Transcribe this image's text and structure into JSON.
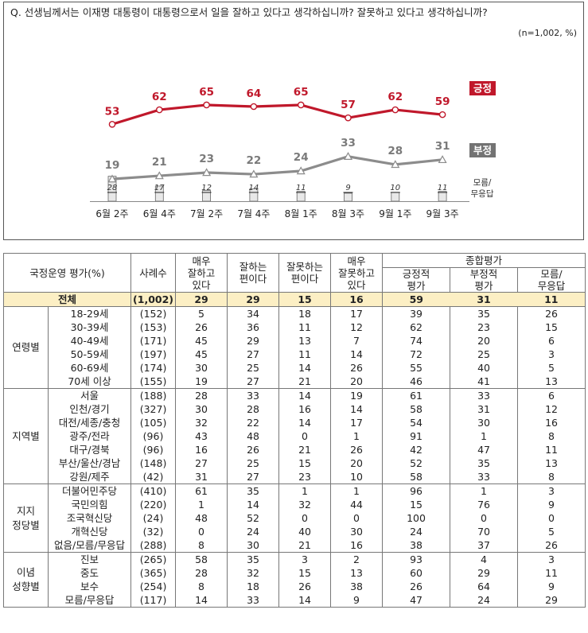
{
  "chart_data": {
    "type": "line",
    "question": "Q. 선생님께서는 이재명 대통령이 대통령으로서 일을 잘하고 있다고 생각하십니까? 잘못하고 있다고 생각하십니까?",
    "note": "(n=1,002,  %)",
    "categories": [
      "6월 2주",
      "6월 4주",
      "7월 2주",
      "7월 4주",
      "8월 1주",
      "8월 3주",
      "9월 1주",
      "9월 3주"
    ],
    "series": [
      {
        "name": "긍정",
        "type": "line",
        "color": "#c0182b",
        "values": [
          53,
          62,
          65,
          64,
          65,
          57,
          62,
          59
        ]
      },
      {
        "name": "부정",
        "type": "line",
        "color": "#8c8c8c",
        "values": [
          19,
          21,
          23,
          22,
          24,
          33,
          28,
          31
        ]
      },
      {
        "name": "모름/\n무응답",
        "label_lines": [
          "모름/",
          "무응답"
        ],
        "type": "bar",
        "color": "#e8e8e8",
        "values": [
          28,
          17,
          12,
          14,
          11,
          9,
          10,
          11
        ]
      }
    ]
  },
  "table": {
    "headers": {
      "group": "국정운영 평가(%)",
      "n": "사례수",
      "very_good": [
        "매우",
        "잘하고",
        "있다"
      ],
      "good": [
        "잘하는",
        "편이다"
      ],
      "bad": [
        "잘못하는",
        "편이다"
      ],
      "very_bad": [
        "매우",
        "잘못하고",
        "있다"
      ],
      "overall": "종합평가",
      "positive": [
        "긍정적",
        "평가"
      ],
      "negative": [
        "부정적",
        "평가"
      ],
      "unknown": [
        "모름/",
        "무응답"
      ]
    },
    "total": {
      "label": "전체",
      "n": "(1,002)",
      "v": [
        "29",
        "29",
        "15",
        "16",
        "59",
        "31",
        "11"
      ]
    },
    "groups": [
      {
        "name": [
          "연령별"
        ],
        "rows": [
          {
            "label": "18-29세",
            "n": "(152)",
            "v": [
              "5",
              "34",
              "18",
              "17",
              "39",
              "35",
              "26"
            ]
          },
          {
            "label": "30-39세",
            "n": "(153)",
            "v": [
              "26",
              "36",
              "11",
              "12",
              "62",
              "23",
              "15"
            ]
          },
          {
            "label": "40-49세",
            "n": "(171)",
            "v": [
              "45",
              "29",
              "13",
              "7",
              "74",
              "20",
              "6"
            ]
          },
          {
            "label": "50-59세",
            "n": "(197)",
            "v": [
              "45",
              "27",
              "11",
              "14",
              "72",
              "25",
              "3"
            ]
          },
          {
            "label": "60-69세",
            "n": "(174)",
            "v": [
              "30",
              "25",
              "14",
              "26",
              "55",
              "40",
              "5"
            ]
          },
          {
            "label": "70세 이상",
            "n": "(155)",
            "v": [
              "19",
              "27",
              "21",
              "20",
              "46",
              "41",
              "13"
            ]
          }
        ]
      },
      {
        "name": [
          "지역별"
        ],
        "rows": [
          {
            "label": "서울",
            "n": "(188)",
            "v": [
              "28",
              "33",
              "14",
              "19",
              "61",
              "33",
              "6"
            ]
          },
          {
            "label": "인천/경기",
            "n": "(327)",
            "v": [
              "30",
              "28",
              "16",
              "14",
              "58",
              "31",
              "12"
            ]
          },
          {
            "label": "대전/세종/충청",
            "n": "(105)",
            "v": [
              "32",
              "22",
              "14",
              "17",
              "54",
              "30",
              "16"
            ]
          },
          {
            "label": "광주/전라",
            "n": "(96)",
            "v": [
              "43",
              "48",
              "0",
              "1",
              "91",
              "1",
              "8"
            ]
          },
          {
            "label": "대구/경북",
            "n": "(96)",
            "v": [
              "16",
              "26",
              "21",
              "26",
              "42",
              "47",
              "11"
            ]
          },
          {
            "label": "부산/울산/경남",
            "n": "(148)",
            "v": [
              "27",
              "25",
              "15",
              "20",
              "52",
              "35",
              "13"
            ]
          },
          {
            "label": "강원/제주",
            "n": "(42)",
            "v": [
              "31",
              "27",
              "23",
              "10",
              "58",
              "33",
              "8"
            ]
          }
        ]
      },
      {
        "name": [
          "지지",
          "정당별"
        ],
        "rows": [
          {
            "label": "더불어민주당",
            "n": "(410)",
            "v": [
              "61",
              "35",
              "1",
              "1",
              "96",
              "1",
              "3"
            ]
          },
          {
            "label": "국민의힘",
            "n": "(220)",
            "v": [
              "1",
              "14",
              "32",
              "44",
              "15",
              "76",
              "9"
            ]
          },
          {
            "label": "조국혁신당",
            "n": "(24)",
            "v": [
              "48",
              "52",
              "0",
              "0",
              "100",
              "0",
              "0"
            ]
          },
          {
            "label": "개혁신당",
            "n": "(32)",
            "v": [
              "0",
              "24",
              "40",
              "30",
              "24",
              "70",
              "5"
            ]
          },
          {
            "label": "없음/모름/무응답",
            "n": "(288)",
            "v": [
              "8",
              "30",
              "21",
              "16",
              "38",
              "37",
              "26"
            ]
          }
        ]
      },
      {
        "name": [
          "이념",
          "성향별"
        ],
        "rows": [
          {
            "label": "진보",
            "n": "(265)",
            "v": [
              "58",
              "35",
              "3",
              "2",
              "93",
              "4",
              "3"
            ]
          },
          {
            "label": "중도",
            "n": "(365)",
            "v": [
              "28",
              "32",
              "15",
              "13",
              "60",
              "29",
              "11"
            ]
          },
          {
            "label": "보수",
            "n": "(254)",
            "v": [
              "8",
              "18",
              "26",
              "38",
              "26",
              "64",
              "9"
            ]
          },
          {
            "label": "모름/무응답",
            "n": "(117)",
            "v": [
              "14",
              "33",
              "14",
              "9",
              "47",
              "24",
              "29"
            ]
          }
        ]
      }
    ]
  }
}
